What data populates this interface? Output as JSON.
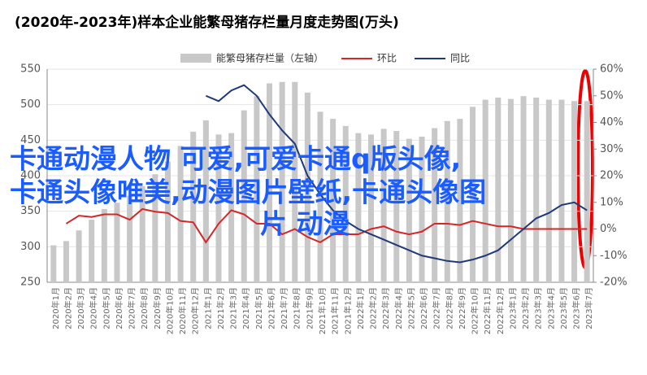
{
  "chart_data": {
    "type": "bar_line",
    "title": "(2020年-2023年)样本企业能繁母猪存栏量月度走势图(万头)",
    "categories": [
      "2020年1月",
      "2020年2月",
      "2020年3月",
      "2020年4月",
      "2020年5月",
      "2020年6月",
      "2020年7月",
      "2020年8月",
      "2020年9月",
      "2020年10月",
      "2020年11月",
      "2020年12月",
      "2021年1月",
      "2021年2月",
      "2021年3月",
      "2021年4月",
      "2021年5月",
      "2021年6月",
      "2021年7月",
      "2021年8月",
      "2021年9月",
      "2021年10月",
      "2021年11月",
      "2021年12月",
      "2022年1月",
      "2022年2月",
      "2022年3月",
      "2022年4月",
      "2022年5月",
      "2022年6月",
      "2022年7月",
      "2022年8月",
      "2022年9月",
      "2022年10月",
      "2022年11月",
      "2022年12月",
      "2023年1月",
      "2023年2月",
      "2023年3月",
      "2023年4月",
      "2023年5月",
      "2023年6月",
      "2023年7月"
    ],
    "series": [
      {
        "name": "能繁母猪存栏量（左轴）",
        "color": "#c8c8c8",
        "kind": "bar",
        "axis": "y",
        "values": [
          302,
          308,
          323,
          338,
          353,
          362,
          372,
          385,
          402,
          420,
          442,
          462,
          478,
          458,
          460,
          492,
          512,
          530,
          532,
          532,
          517,
          490,
          480,
          470,
          460,
          458,
          466,
          463,
          452,
          455,
          467,
          477,
          480,
          497,
          507,
          510,
          508,
          512,
          510,
          507,
          507,
          505,
          505
        ]
      },
      {
        "name": "环比",
        "color": "#d62728",
        "kind": "line",
        "axis": "y2",
        "values": [
          null,
          2,
          5,
          4.5,
          5.5,
          5.5,
          3.5,
          7.5,
          6.5,
          6,
          3,
          2.5,
          -5,
          2,
          7,
          5.5,
          2,
          2,
          -2,
          0,
          -3,
          -5,
          -2,
          -2,
          -2,
          0,
          1,
          -1,
          -2,
          -1,
          2,
          2,
          1.5,
          3,
          2,
          1,
          1,
          0,
          0,
          0,
          0,
          0,
          0
        ]
      },
      {
        "name": "同比",
        "color": "#1f3a7a",
        "kind": "line",
        "axis": "y2",
        "values": [
          null,
          null,
          null,
          null,
          null,
          null,
          null,
          null,
          null,
          null,
          null,
          null,
          50,
          48,
          52,
          54,
          50,
          43,
          37,
          32,
          20,
          13,
          7,
          3,
          0,
          -2,
          -4,
          -6,
          -8,
          -10,
          -11,
          -12,
          -12.5,
          -11.5,
          -10,
          -8,
          -4,
          0,
          4,
          6,
          9,
          10,
          7
        ]
      }
    ],
    "ylim": [
      250,
      550
    ],
    "yticks": [
      250,
      300,
      350,
      400,
      450,
      500,
      550
    ],
    "y2lim": [
      -20,
      60
    ],
    "y2ticks": [
      {
        "value": -20,
        "label": "-20%"
      },
      {
        "value": -10,
        "label": "-10%"
      },
      {
        "value": 0,
        "label": "0%"
      },
      {
        "value": 10,
        "label": "10%"
      },
      {
        "value": 20,
        "label": "20%"
      },
      {
        "value": 30,
        "label": "30%"
      },
      {
        "value": 40,
        "label": "40%"
      },
      {
        "value": 50,
        "label": "50%"
      },
      {
        "value": 60,
        "label": "60%"
      }
    ],
    "overlay_text": [
      "卡通动漫人物 可爱,可爱卡通q版头像,",
      "卡通头像唯美,动漫图片壁纸,卡通头像图",
      "片 动漫"
    ]
  }
}
